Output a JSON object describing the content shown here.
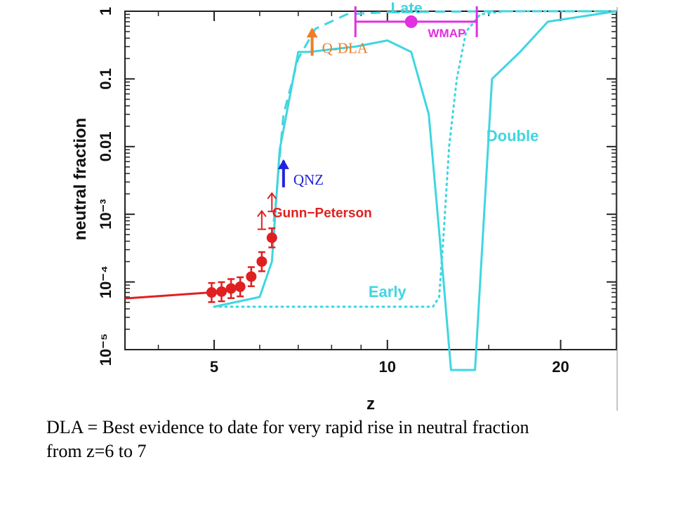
{
  "chart_data": {
    "type": "line",
    "xlabel": "z",
    "ylabel": "neutral fraction",
    "x_scale": "log",
    "y_scale": "log",
    "xlim": [
      3.5,
      25
    ],
    "ylim": [
      1e-05,
      1
    ],
    "x_ticks": [
      {
        "value": 5,
        "label": "5"
      },
      {
        "value": 10,
        "label": "10"
      },
      {
        "value": 20,
        "label": "20"
      }
    ],
    "y_ticks": [
      {
        "value": 1,
        "label": "1"
      },
      {
        "value": 0.1,
        "label": "0.1"
      },
      {
        "value": 0.01,
        "label": "0.01"
      },
      {
        "value": 0.001,
        "label": "10⁻³"
      },
      {
        "value": 0.0001,
        "label": "10⁻⁴"
      },
      {
        "value": 1e-05,
        "label": "10⁻⁵"
      }
    ],
    "series": [
      {
        "name": "Late",
        "style": "dashed",
        "color": "#3fd6e0",
        "points": [
          [
            6.3,
            0.00045
          ],
          [
            6.4,
            0.0015
          ],
          [
            6.5,
            0.007
          ],
          [
            6.6,
            0.03
          ],
          [
            7.0,
            0.2
          ],
          [
            7.5,
            0.55
          ],
          [
            8.5,
            0.9
          ],
          [
            10,
            0.97
          ],
          [
            15,
            1.0
          ],
          [
            25,
            1.0
          ]
        ]
      },
      {
        "name": "Double",
        "style": "solid",
        "color": "#3fd6e0",
        "points": [
          [
            5.0,
            4.3e-05
          ],
          [
            6.0,
            6e-05
          ],
          [
            6.3,
            0.0002
          ],
          [
            6.5,
            0.009
          ],
          [
            7.0,
            0.25
          ],
          [
            7.3,
            0.25
          ],
          [
            8.8,
            0.3
          ],
          [
            10,
            0.37
          ],
          [
            11,
            0.25
          ],
          [
            11.8,
            0.03
          ],
          [
            12.5,
            0.00012
          ],
          [
            12.9,
            5e-06
          ],
          [
            14.2,
            5e-06
          ],
          [
            15.2,
            0.1
          ],
          [
            17,
            0.25
          ],
          [
            19,
            0.7
          ],
          [
            25,
            1.0
          ]
        ]
      },
      {
        "name": "Early",
        "style": "dotted",
        "color": "#3fd6e0",
        "points": [
          [
            5.0,
            4.3e-05
          ],
          [
            12.0,
            4.3e-05
          ],
          [
            12.3,
            6e-05
          ],
          [
            12.5,
            0.0004
          ],
          [
            12.8,
            0.01
          ],
          [
            13.2,
            0.1
          ],
          [
            13.7,
            0.5
          ],
          [
            14.5,
            0.9
          ],
          [
            16,
            1.0
          ],
          [
            25,
            1.0
          ]
        ]
      },
      {
        "name": "Gunn-Peterson",
        "style": "markers",
        "color": "#e02020",
        "points": [
          [
            4.95,
            7e-05
          ],
          [
            5.15,
            7.2e-05
          ],
          [
            5.35,
            8e-05
          ],
          [
            5.55,
            8.5e-05
          ],
          [
            5.8,
            0.00012
          ],
          [
            6.05,
            0.0002
          ],
          [
            6.3,
            0.00045
          ]
        ],
        "lower_limits": [
          [
            6.05,
            0.0006
          ],
          [
            6.3,
            0.0011
          ]
        ]
      },
      {
        "name": "",
        "style": "solid",
        "color": "#e02020",
        "points": [
          [
            3.5,
            5.7e-05
          ],
          [
            4.95,
            7e-05
          ]
        ]
      }
    ],
    "wmap": {
      "label": "WMAP",
      "x_range": [
        8.8,
        14.3
      ],
      "y": 0.7,
      "center": 11.0,
      "color": "#e030e0"
    },
    "annotations": [
      {
        "text": "Late",
        "x": 10.8,
        "y": 0.93,
        "color": "#3fd6e0"
      },
      {
        "text": "Double",
        "x": 16.5,
        "y": 0.012,
        "color": "#3fd6e0"
      },
      {
        "text": "Early",
        "x": 10.0,
        "y": 6e-05,
        "color": "#3fd6e0"
      },
      {
        "text": "Gunn−Peterson",
        "x": 7.7,
        "y": 0.0009,
        "color": "#e02020"
      }
    ],
    "markers": [
      {
        "text": "Q-DLA",
        "x": 7.4,
        "y": 0.22,
        "color": "#f07b28"
      },
      {
        "text": "QNZ",
        "x": 6.6,
        "y": 0.0025,
        "color": "#2222dd"
      }
    ]
  },
  "caption": "DLA = Best evidence to date for very rapid rise in neutral fraction\nfrom z=6 to 7"
}
